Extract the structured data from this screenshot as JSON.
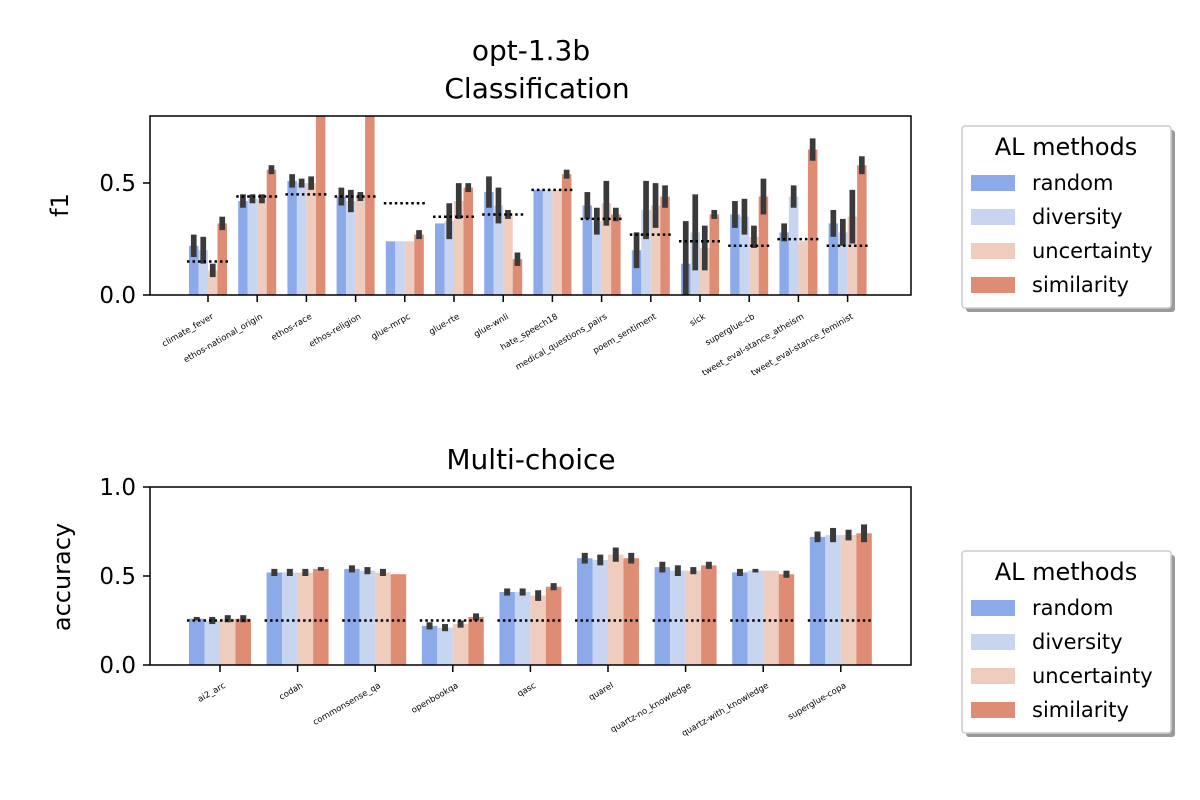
{
  "suptitle": "opt-1.3b",
  "colors": {
    "random": "#8caaea",
    "diversity": "#c7d5f0",
    "uncertainty": "#eecdbf",
    "similarity": "#df8c75",
    "errorbar": "#3a3a3a",
    "baseline": "#000000"
  },
  "legend": {
    "title": "AL methods",
    "items": [
      "random",
      "diversity",
      "uncertainty",
      "similarity"
    ]
  },
  "chart_data": [
    {
      "type": "bar",
      "title": "Classification",
      "ylabel": "f1",
      "xlabel": "",
      "ylim": [
        0,
        0.8
      ],
      "yticks": [
        "0.0",
        "0.5"
      ],
      "grid": false,
      "legend_position": "right",
      "categories": [
        "climate_fever",
        "ethos-national_origin",
        "ethos-race",
        "ethos-religion",
        "glue-mrpc",
        "glue-rte",
        "glue-wnli",
        "hate_speech18",
        "medical_questions_pairs",
        "poem_sentiment",
        "sick",
        "superglue-cb",
        "tweet_eval-stance_atheism",
        "tweet_eval-stance_feminist"
      ],
      "series": [
        {
          "name": "random",
          "values": [
            0.22,
            0.42,
            0.51,
            0.44,
            0.24,
            0.32,
            0.46,
            0.47,
            0.4,
            0.2,
            0.14,
            0.36,
            0.28,
            0.32
          ],
          "err": [
            0.05,
            0.03,
            0.03,
            0.04,
            0.0,
            0.0,
            0.07,
            0.0,
            0.06,
            0.08,
            0.19,
            0.06,
            0.04,
            0.06
          ]
        },
        {
          "name": "diversity",
          "values": [
            0.2,
            0.43,
            0.5,
            0.42,
            0.24,
            0.33,
            0.4,
            0.47,
            0.33,
            0.38,
            0.28,
            0.35,
            0.44,
            0.28
          ],
          "err": [
            0.06,
            0.02,
            0.02,
            0.05,
            0.0,
            0.08,
            0.08,
            0.0,
            0.06,
            0.13,
            0.17,
            0.08,
            0.05,
            0.06
          ]
        },
        {
          "name": "uncertainty",
          "values": [
            0.11,
            0.43,
            0.5,
            0.44,
            0.24,
            0.42,
            0.36,
            0.47,
            0.41,
            0.4,
            0.21,
            0.26,
            0.24,
            0.35
          ],
          "err": [
            0.03,
            0.02,
            0.03,
            0.02,
            0.0,
            0.08,
            0.02,
            0.0,
            0.1,
            0.1,
            0.1,
            0.05,
            0.0,
            0.12
          ]
        },
        {
          "name": "similarity",
          "values": [
            0.32,
            0.56,
            0.8,
            0.8,
            0.27,
            0.48,
            0.16,
            0.54,
            0.36,
            0.44,
            0.36,
            0.44,
            0.65,
            0.58
          ],
          "err": [
            0.03,
            0.02,
            0.0,
            0.0,
            0.02,
            0.02,
            0.03,
            0.02,
            0.03,
            0.05,
            0.02,
            0.08,
            0.05,
            0.04
          ]
        }
      ],
      "baselines": [
        0.15,
        0.44,
        0.45,
        0.44,
        0.41,
        0.35,
        0.36,
        0.47,
        0.34,
        0.27,
        0.24,
        0.22,
        0.25,
        0.22
      ]
    },
    {
      "type": "bar",
      "title": "Multi-choice",
      "ylabel": "accuracy",
      "xlabel": "",
      "ylim": [
        0,
        1.0
      ],
      "yticks": [
        "0.0",
        "0.5",
        "1.0"
      ],
      "grid": false,
      "legend_position": "right",
      "categories": [
        "ai2_arc",
        "codah",
        "commonsense_qa",
        "openbookqa",
        "qasc",
        "quarel",
        "quartz-no_knowledge",
        "quartz-with_knowledge",
        "superglue-copa"
      ],
      "series": [
        {
          "name": "random",
          "values": [
            0.26,
            0.52,
            0.54,
            0.22,
            0.41,
            0.6,
            0.55,
            0.52,
            0.72
          ],
          "err": [
            0.01,
            0.02,
            0.02,
            0.02,
            0.02,
            0.03,
            0.03,
            0.02,
            0.03
          ]
        },
        {
          "name": "diversity",
          "values": [
            0.25,
            0.52,
            0.53,
            0.21,
            0.41,
            0.59,
            0.53,
            0.53,
            0.73
          ],
          "err": [
            0.02,
            0.02,
            0.02,
            0.02,
            0.02,
            0.03,
            0.03,
            0.01,
            0.04
          ]
        },
        {
          "name": "uncertainty",
          "values": [
            0.26,
            0.52,
            0.52,
            0.23,
            0.39,
            0.62,
            0.53,
            0.53,
            0.73
          ],
          "err": [
            0.02,
            0.02,
            0.02,
            0.02,
            0.03,
            0.04,
            0.02,
            0.0,
            0.03
          ]
        },
        {
          "name": "similarity",
          "values": [
            0.26,
            0.54,
            0.51,
            0.27,
            0.44,
            0.6,
            0.56,
            0.51,
            0.74
          ],
          "err": [
            0.02,
            0.01,
            0.0,
            0.02,
            0.02,
            0.03,
            0.02,
            0.02,
            0.05
          ]
        }
      ],
      "baselines": [
        0.25,
        0.25,
        0.25,
        0.25,
        0.25,
        0.25,
        0.25,
        0.25,
        0.25
      ]
    }
  ]
}
